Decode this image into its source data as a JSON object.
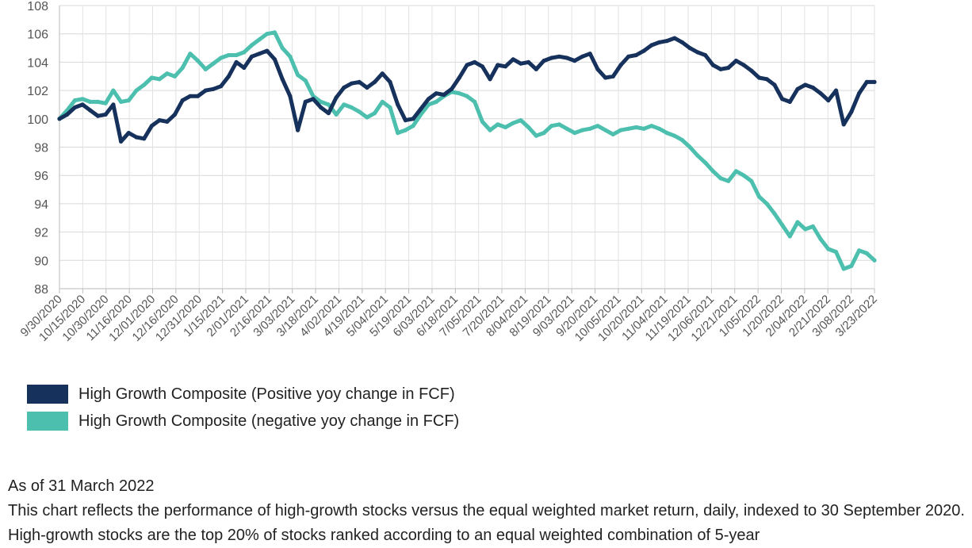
{
  "chart_data": {
    "type": "line",
    "ylim": [
      88,
      108
    ],
    "yticks": [
      "88",
      "90",
      "92",
      "94",
      "96",
      "98",
      "100",
      "102",
      "104",
      "106",
      "108"
    ],
    "x_tick_labels": [
      "9/30/2020",
      "10/15/2020",
      "10/30/2020",
      "11/16/2020",
      "12/01/2020",
      "12/16/2020",
      "12/31/2020",
      "1/15/2021",
      "2/01/2021",
      "2/16/2021",
      "3/03/2021",
      "3/18/2021",
      "4/02/2021",
      "4/19/2021",
      "5/04/2021",
      "5/19/2021",
      "6/03/2021",
      "6/18/2021",
      "7/05/2021",
      "7/20/2021",
      "8/04/2021",
      "8/19/2021",
      "9/03/2021",
      "9/20/2021",
      "10/05/2021",
      "10/20/2021",
      "11/04/2021",
      "11/19/2021",
      "12/06/2021",
      "12/21/2021",
      "1/05/2022",
      "1/20/2022",
      "2/04/2022",
      "2/21/2022",
      "3/08/2022",
      "3/23/2022"
    ],
    "x": [
      "9/30/2020",
      "10/05/2020",
      "10/10/2020",
      "10/15/2020",
      "10/20/2020",
      "10/25/2020",
      "10/30/2020",
      "11/04/2020",
      "11/10/2020",
      "11/16/2020",
      "11/21/2020",
      "11/26/2020",
      "12/01/2020",
      "12/06/2020",
      "12/11/2020",
      "12/16/2020",
      "12/21/2020",
      "12/26/2020",
      "12/31/2020",
      "1/05/2021",
      "1/10/2021",
      "1/15/2021",
      "1/21/2021",
      "1/27/2021",
      "2/01/2021",
      "2/06/2021",
      "2/11/2021",
      "2/16/2021",
      "2/21/2021",
      "2/26/2021",
      "3/03/2021",
      "3/08/2021",
      "3/13/2021",
      "3/18/2021",
      "3/23/2021",
      "3/28/2021",
      "4/02/2021",
      "4/08/2021",
      "4/14/2021",
      "4/19/2021",
      "4/24/2021",
      "4/29/2021",
      "5/04/2021",
      "5/09/2021",
      "5/14/2021",
      "5/19/2021",
      "5/24/2021",
      "5/29/2021",
      "6/03/2021",
      "6/08/2021",
      "6/13/2021",
      "6/18/2021",
      "6/24/2021",
      "6/30/2021",
      "7/05/2021",
      "7/10/2021",
      "7/15/2021",
      "7/20/2021",
      "7/25/2021",
      "7/30/2021",
      "8/04/2021",
      "8/09/2021",
      "8/14/2021",
      "8/19/2021",
      "8/24/2021",
      "8/29/2021",
      "9/03/2021",
      "9/09/2021",
      "9/15/2021",
      "9/20/2021",
      "9/25/2021",
      "9/30/2021",
      "10/05/2021",
      "10/10/2021",
      "10/15/2021",
      "10/20/2021",
      "10/25/2021",
      "10/30/2021",
      "11/04/2021",
      "11/09/2021",
      "11/14/2021",
      "11/19/2021",
      "11/25/2021",
      "12/01/2021",
      "12/06/2021",
      "12/11/2021",
      "12/16/2021",
      "12/21/2021",
      "12/26/2021",
      "12/31/2021",
      "1/05/2022",
      "1/10/2022",
      "1/15/2022",
      "1/20/2022",
      "1/25/2022",
      "1/30/2022",
      "2/04/2022",
      "2/10/2022",
      "2/16/2022",
      "2/21/2022",
      "2/26/2022",
      "3/03/2022",
      "3/08/2022",
      "3/13/2022",
      "3/18/2022",
      "3/23/2022",
      "3/31/2022"
    ],
    "series": [
      {
        "name": "High Growth Composite (Positive yoy change in FCF)",
        "color": "#16325c",
        "values": [
          100.0,
          100.3,
          100.8,
          101.0,
          100.6,
          100.2,
          100.3,
          101.0,
          98.4,
          99.0,
          98.7,
          98.6,
          99.5,
          99.9,
          99.8,
          100.3,
          101.3,
          101.6,
          101.6,
          102.0,
          102.1,
          102.3,
          103.0,
          104.0,
          103.6,
          104.4,
          104.6,
          104.8,
          104.2,
          102.8,
          101.6,
          99.2,
          101.2,
          101.4,
          100.8,
          100.4,
          101.5,
          102.2,
          102.5,
          102.6,
          102.2,
          102.6,
          103.2,
          102.6,
          101.0,
          99.9,
          100.0,
          100.7,
          101.4,
          101.8,
          101.7,
          102.1,
          102.9,
          103.8,
          104.0,
          103.7,
          102.8,
          103.8,
          103.7,
          104.2,
          103.9,
          104.0,
          103.5,
          104.1,
          104.3,
          104.4,
          104.3,
          104.1,
          104.4,
          104.6,
          103.5,
          102.9,
          103.0,
          103.8,
          104.4,
          104.5,
          104.8,
          105.2,
          105.4,
          105.5,
          105.7,
          105.4,
          105.0,
          104.7,
          104.5,
          103.8,
          103.5,
          103.6,
          104.1,
          103.8,
          103.4,
          102.9,
          102.8,
          102.4,
          101.4,
          101.2,
          102.1,
          102.4,
          102.2,
          101.8,
          101.3,
          102.0,
          99.6,
          100.5,
          101.8,
          102.6,
          102.6
        ]
      },
      {
        "name": "High Growth Composite (negative yoy change in FCF)",
        "color": "#4dbfae",
        "values": [
          100.0,
          100.6,
          101.3,
          101.4,
          101.2,
          101.2,
          101.1,
          102.0,
          101.2,
          101.3,
          102.0,
          102.4,
          102.9,
          102.8,
          103.2,
          103.0,
          103.6,
          104.6,
          104.1,
          103.5,
          103.9,
          104.3,
          104.5,
          104.5,
          104.7,
          105.2,
          105.6,
          106.0,
          106.1,
          105.0,
          104.4,
          103.1,
          102.7,
          101.6,
          101.2,
          101.0,
          100.3,
          101.0,
          100.8,
          100.5,
          100.1,
          100.4,
          101.2,
          100.8,
          99.0,
          99.2,
          99.5,
          100.3,
          101.0,
          101.2,
          101.6,
          101.9,
          101.8,
          101.6,
          101.2,
          99.8,
          99.2,
          99.6,
          99.4,
          99.7,
          99.9,
          99.4,
          98.8,
          99.0,
          99.5,
          99.6,
          99.3,
          99.0,
          99.2,
          99.3,
          99.5,
          99.2,
          98.9,
          99.2,
          99.3,
          99.4,
          99.3,
          99.5,
          99.3,
          99.0,
          98.8,
          98.5,
          98.0,
          97.4,
          96.9,
          96.3,
          95.8,
          95.6,
          96.3,
          96.0,
          95.6,
          94.5,
          94.0,
          93.3,
          92.5,
          91.7,
          92.7,
          92.2,
          92.4,
          91.5,
          90.8,
          90.6,
          89.4,
          89.6,
          90.7,
          90.5,
          90.0
        ]
      }
    ],
    "legend_position": "bottom-left",
    "grid": true
  },
  "notes": {
    "as_of": "As of 31 March 2022",
    "description": "This chart reflects the performance of high-growth stocks versus the equal weighted market return, daily, indexed to 30 September 2020. High-growth stocks are the top 20% of stocks ranked according to an equal weighted combination of 5-year"
  }
}
